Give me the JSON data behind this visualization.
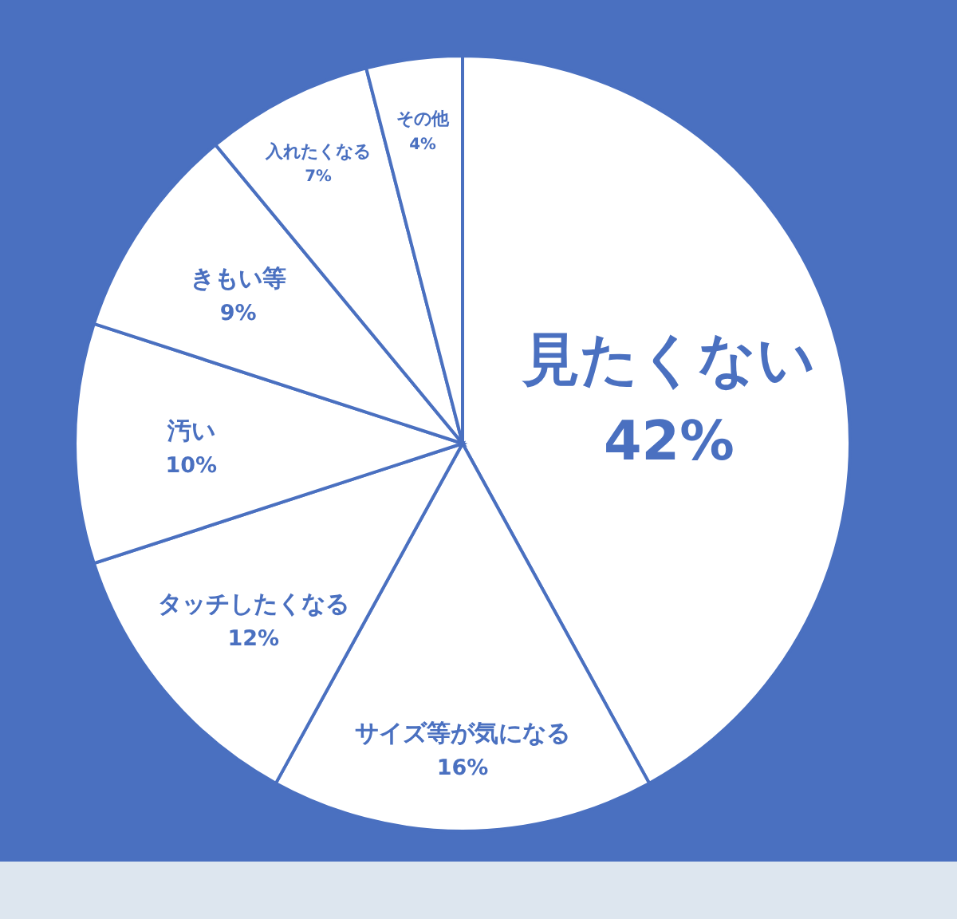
{
  "chart_data": {
    "type": "pie",
    "categories": [
      "見たくない",
      "サイズ等が気になる",
      "タッチしたくなる",
      "汚い",
      "きもい等",
      "入れたくなる",
      "その他"
    ],
    "values": [
      42,
      16,
      12,
      10,
      9,
      7,
      4
    ],
    "value_labels": [
      "42%",
      "16%",
      "12%",
      "10%",
      "9%",
      "7%",
      "4%"
    ],
    "colors": [
      "#ffffff",
      "#ffffff",
      "#ffffff",
      "#ffffff",
      "#ffffff",
      "#ffffff",
      "#ffffff"
    ]
  }
}
